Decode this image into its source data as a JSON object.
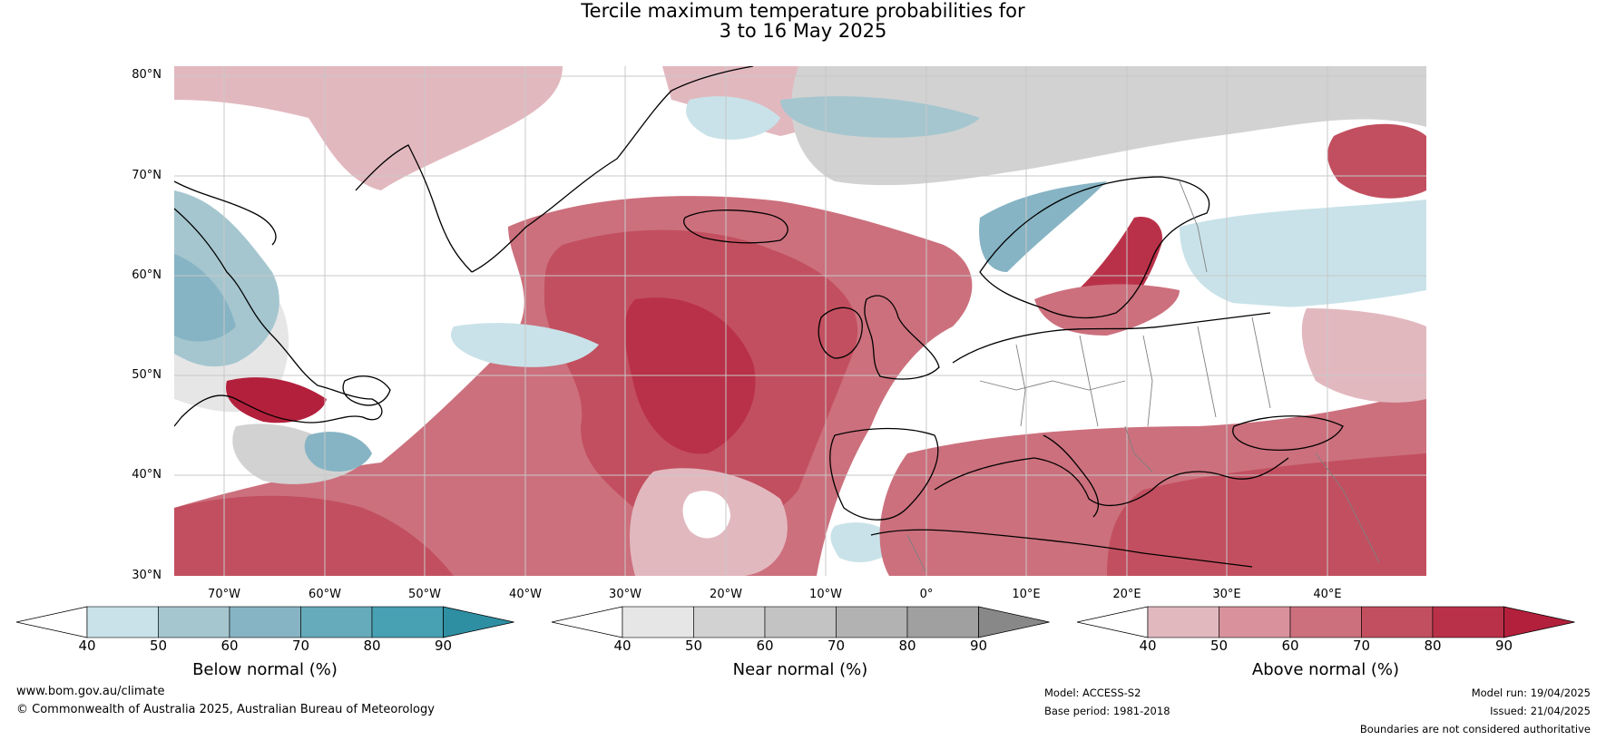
{
  "title": {
    "line1": "Tercile maximum temperature probabilities for",
    "line2": "3 to 16 May 2025"
  },
  "map": {
    "region": "North Atlantic and Europe",
    "lat_labels": [
      "80°N",
      "70°N",
      "60°N",
      "50°N",
      "40°N",
      "30°N"
    ],
    "lon_labels": [
      "70°W",
      "60°W",
      "50°W",
      "40°W",
      "30°W",
      "20°W",
      "10°W",
      "0°",
      "10°E",
      "20°E",
      "30°E",
      "40°E"
    ],
    "colors": {
      "ocean_border": "#000000",
      "country_border": "#808080",
      "gridline": "#c8c8c8"
    }
  },
  "colorbars": [
    {
      "label": "Below normal (%)",
      "ticks": [
        "40",
        "50",
        "60",
        "70",
        "80",
        "90"
      ],
      "colors": [
        "#ffffff",
        "#c9e2e9",
        "#a5c6cf",
        "#86b4c4",
        "#66abbb",
        "#48a0b3",
        "#2e8fa3"
      ]
    },
    {
      "label": "Near normal (%)",
      "ticks": [
        "40",
        "50",
        "60",
        "70",
        "80",
        "90"
      ],
      "colors": [
        "#ffffff",
        "#e6e6e6",
        "#d2d2d2",
        "#c3c3c3",
        "#b2b2b2",
        "#a0a0a0",
        "#888888"
      ]
    },
    {
      "label": "Above normal (%)",
      "ticks": [
        "40",
        "50",
        "60",
        "70",
        "80",
        "90"
      ],
      "colors": [
        "#ffffff",
        "#e2b8bf",
        "#d9929c",
        "#cc707d",
        "#c24f5f",
        "#b93148",
        "#b3203c"
      ]
    }
  ],
  "footer": {
    "website": "www.bom.gov.au/climate",
    "copyright": "© Commonwealth of Australia 2025, Australian Bureau of Meteorology",
    "model": "Model: ACCESS-S2",
    "base_period": "Base period: 1981-2018",
    "model_run": "Model run: 19/04/2025",
    "issued": "Issued: 21/04/2025",
    "disclaimer": "Boundaries are not considered authoritative"
  }
}
